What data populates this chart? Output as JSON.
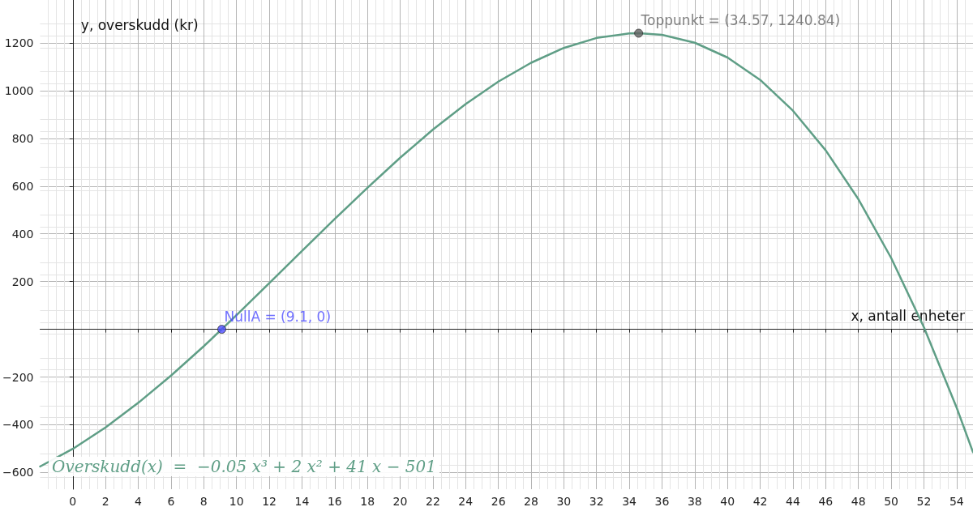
{
  "chart_data": {
    "type": "line",
    "xlabel": "x, antall enheter",
    "ylabel": "y, overskudd (kr)",
    "xlim": [
      -2,
      55
    ],
    "ylim": [
      -670,
      1380
    ],
    "xticks": [
      0,
      2,
      4,
      6,
      8,
      10,
      12,
      14,
      16,
      18,
      20,
      22,
      24,
      26,
      28,
      30,
      32,
      34,
      36,
      38,
      40,
      42,
      44,
      46,
      48,
      50,
      52,
      54
    ],
    "yticks": [
      {
        "value": -600,
        "label": "−600"
      },
      {
        "value": -400,
        "label": "−400"
      },
      {
        "value": -200,
        "label": "−200"
      },
      200,
      400,
      600,
      800,
      1000,
      1200
    ],
    "grid": true,
    "series": [
      {
        "color": "#5f9e86",
        "marker": "none",
        "x": [
          -2,
          0,
          2,
          4,
          6,
          8,
          10,
          12,
          14,
          16,
          18,
          20,
          22,
          24,
          26,
          28,
          30,
          32,
          34,
          34.57,
          36,
          38,
          40,
          42,
          44,
          46,
          48,
          50,
          52,
          54,
          55
        ],
        "values": [
          -575,
          -501,
          -411,
          -308,
          -194,
          -71,
          59,
          193,
          328,
          462,
          593,
          719,
          837,
          944,
          1038,
          1117,
          1179,
          1221,
          1240,
          1241,
          1234,
          1201,
          1139,
          1045,
          916,
          750,
          545,
          299,
          9,
          -328,
          -515
        ]
      },
      {
        "type": "scatter",
        "color": "#4d4dff",
        "marker": "circle",
        "x": [
          9.1
        ],
        "values": [
          0
        ]
      },
      {
        "type": "scatter",
        "color": "#616161",
        "marker": "circle",
        "x": [
          34.57
        ],
        "values": [
          1240.84
        ]
      }
    ],
    "annotations": [
      {
        "text": "NullA = (9.1, 0)",
        "x": 9.1,
        "y": 0
      },
      {
        "text": "Toppunkt = (34.57, 1240.84)",
        "x": 34.57,
        "y": 1240.84
      },
      "Overskudd(x)  =  −0.05 x³ + 2 x² + 41 x − 501"
    ]
  }
}
